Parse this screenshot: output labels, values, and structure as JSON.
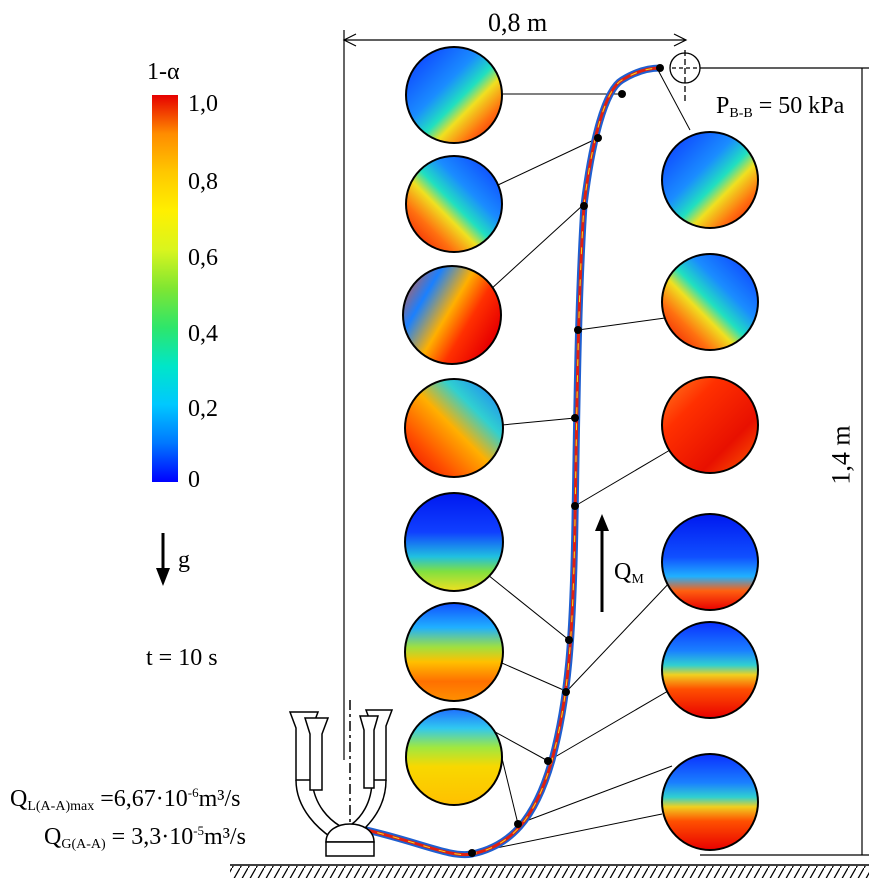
{
  "colorbar": {
    "title": "1-α",
    "ticks": [
      "1,0",
      "0,8",
      "0,6",
      "0,4",
      "0,2",
      "0"
    ],
    "stops": [
      "#0000ff",
      "#0077ff",
      "#00c8ff",
      "#00e6c8",
      "#2ee66a",
      "#7fe632",
      "#d9f51e",
      "#fff000",
      "#ffc800",
      "#ff8c00",
      "#ff4600",
      "#e60000"
    ]
  },
  "gravity": {
    "label": "g"
  },
  "time": {
    "label": "t = 10 s"
  },
  "flow": {
    "label": "Q",
    "sub": "M"
  },
  "dimensions": {
    "width": "0,8 m",
    "height": "1,4 m"
  },
  "pressure": {
    "label": "P",
    "sub": "B-B",
    "value": "= 50 kPa"
  },
  "inlet_liquid": {
    "label": "Q",
    "sub": "L(A-A)max",
    "value": "=6,67·10",
    "exp": "-6",
    "unit": "m³/s"
  },
  "inlet_gas": {
    "label": "Q",
    "sub": "G(A-A)",
    "value": "= 3,3·10",
    "exp": "-5",
    "unit": "m³/s"
  },
  "colors": {
    "pipe_outer": "#1f5fd0",
    "pipe_inner": "#e02010",
    "line": "#000000"
  }
}
